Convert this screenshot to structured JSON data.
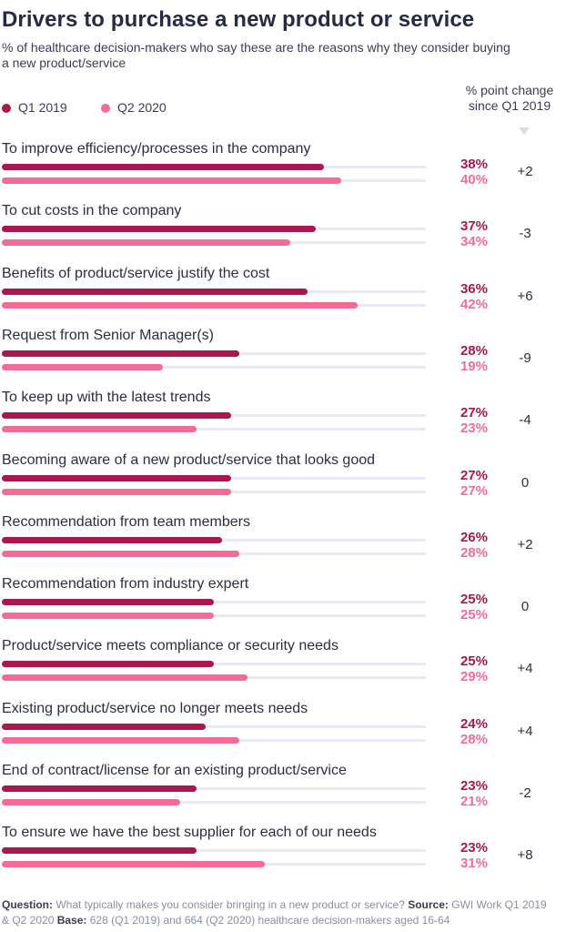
{
  "title": "Drivers to purchase a new product or service",
  "subtitle": "% of healthcare decision-makers who say these are the reasons why they consider buying a new product/service",
  "change_header": "% point change since Q1 2019",
  "colors": {
    "q1": "#a8184f",
    "q2": "#f36c98",
    "track": "#e6e9f3"
  },
  "footer": {
    "question_label": "Question:",
    "question_text": " What typically makes you consider bringing in a new product or service? ",
    "source_label": "Source:",
    "source_text": " GWI Work Q1 2019 & Q2 2020 ",
    "base_label": "Base:",
    "base_text": " 628 (Q1 2019) and 664 (Q2 2020) healthcare decision-makers aged 16-64"
  },
  "chart_data": {
    "type": "bar",
    "orientation": "horizontal",
    "title": "Drivers to purchase a new product or service",
    "subtitle": "% of healthcare decision-makers who say these are the reasons why they consider buying a new product/service",
    "legend_position": "top-left",
    "xlim": [
      0,
      50
    ],
    "categories": [
      "To improve efficiency/processes in the company",
      "To cut costs in the company",
      "Benefits of product/service justify the cost",
      "Request from Senior Manager(s)",
      "To keep up with the latest trends",
      "Becoming aware of a new product/service that looks good",
      "Recommendation from team members",
      "Recommendation from industry expert",
      "Product/service meets compliance or security needs",
      "Existing product/service no longer meets needs",
      "End of contract/license for an existing product/service",
      "To ensure we have the best supplier for each of our needs"
    ],
    "series": [
      {
        "name": "Q1 2019",
        "values": [
          38,
          37,
          36,
          28,
          27,
          27,
          26,
          25,
          25,
          24,
          23,
          23
        ]
      },
      {
        "name": "Q2 2020",
        "values": [
          40,
          34,
          42,
          19,
          23,
          27,
          28,
          25,
          29,
          28,
          21,
          31
        ]
      }
    ],
    "value_labels": {
      "Q1 2019": [
        "38%",
        "37%",
        "36%",
        "28%",
        "27%",
        "27%",
        "26%",
        "25%",
        "25%",
        "24%",
        "23%",
        "23%"
      ],
      "Q2 2020": [
        "40%",
        "34%",
        "42%",
        "19%",
        "23%",
        "27%",
        "28%",
        "25%",
        "29%",
        "28%",
        "21%",
        "31%"
      ]
    },
    "point_change": [
      "+2",
      "-3",
      "+6",
      "-9",
      "-4",
      "0",
      "+2",
      "0",
      "+4",
      "+4",
      "-2",
      "+8"
    ]
  }
}
